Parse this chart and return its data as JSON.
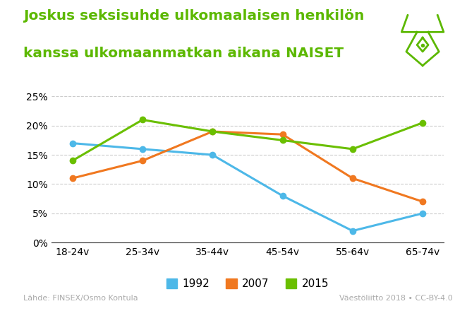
{
  "title_line1": "Joskus seksisuhde ulkomaalaisen henkilön",
  "title_line2": "kanssa ulkomaanmatkan aikana NAISET",
  "categories": [
    "18-24v",
    "25-34v",
    "35-44v",
    "45-54v",
    "55-64v",
    "65-74v"
  ],
  "series": {
    "1992": [
      17,
      16,
      15,
      8,
      2,
      5
    ],
    "2007": [
      11,
      14,
      19,
      18.5,
      11,
      7
    ],
    "2015": [
      14,
      21,
      19,
      17.5,
      16,
      20.5
    ]
  },
  "colors": {
    "1992": "#4db8e8",
    "2007": "#f07820",
    "2015": "#6abf00"
  },
  "ylim": [
    0,
    25
  ],
  "yticks": [
    0,
    5,
    10,
    15,
    20,
    25
  ],
  "ytick_labels": [
    "0%",
    "5%",
    "10%",
    "15%",
    "20%",
    "25%"
  ],
  "source_left": "Lähde: FINSEX/Osmo Kontula",
  "source_right": "Väestöliitto 2018 • CC-BY-4.0",
  "background_color": "#ffffff",
  "title_color": "#5cb800",
  "grid_color": "#cccccc",
  "line_width": 2.2,
  "marker_size": 6,
  "legend_labels": [
    "1992",
    "2007",
    "2015"
  ]
}
